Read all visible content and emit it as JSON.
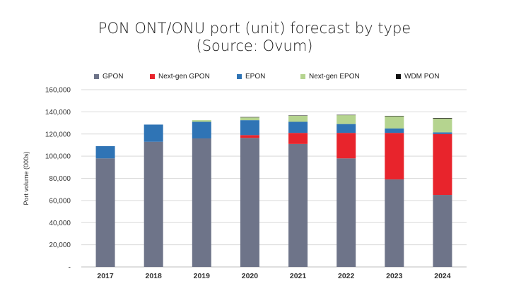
{
  "title_line1": "PON ONT/ONU port (unit) forecast by type",
  "title_line2": "(Source: Ovum)",
  "chart_data": {
    "type": "bar",
    "stacked": true,
    "title": "PON ONT/ONU port (unit) forecast by type (Source: Ovum)",
    "xlabel": "",
    "ylabel": "Port volume (000s)",
    "ylim": [
      0,
      160000
    ],
    "yticks": [
      0,
      20000,
      40000,
      60000,
      80000,
      100000,
      120000,
      140000,
      160000
    ],
    "ytick_labels": [
      "-",
      "20,000",
      "40,000",
      "60,000",
      "80,000",
      "100,000",
      "120,000",
      "140,000",
      "160,000"
    ],
    "grid": true,
    "legend_position": "top",
    "categories": [
      "2017",
      "2018",
      "2019",
      "2020",
      "2021",
      "2022",
      "2023",
      "2024"
    ],
    "series": [
      {
        "name": "GPON",
        "color": "#6e7489",
        "values": [
          98000,
          113000,
          116000,
          116500,
          111000,
          98000,
          79000,
          65000
        ]
      },
      {
        "name": "Next-gen GPON",
        "color": "#e8242c",
        "values": [
          0,
          0,
          0,
          2500,
          10000,
          23000,
          42000,
          55000
        ]
      },
      {
        "name": "EPON",
        "color": "#2f74b5",
        "values": [
          11000,
          15500,
          15000,
          13500,
          10000,
          8000,
          4000,
          1500
        ]
      },
      {
        "name": "Next-gen EPON",
        "color": "#b5d48f",
        "values": [
          0,
          0,
          1500,
          2500,
          5500,
          8000,
          11000,
          12500
        ]
      },
      {
        "name": "WDM PON",
        "color": "#111111",
        "values": [
          0,
          0,
          0,
          300,
          300,
          300,
          400,
          500
        ]
      }
    ]
  }
}
